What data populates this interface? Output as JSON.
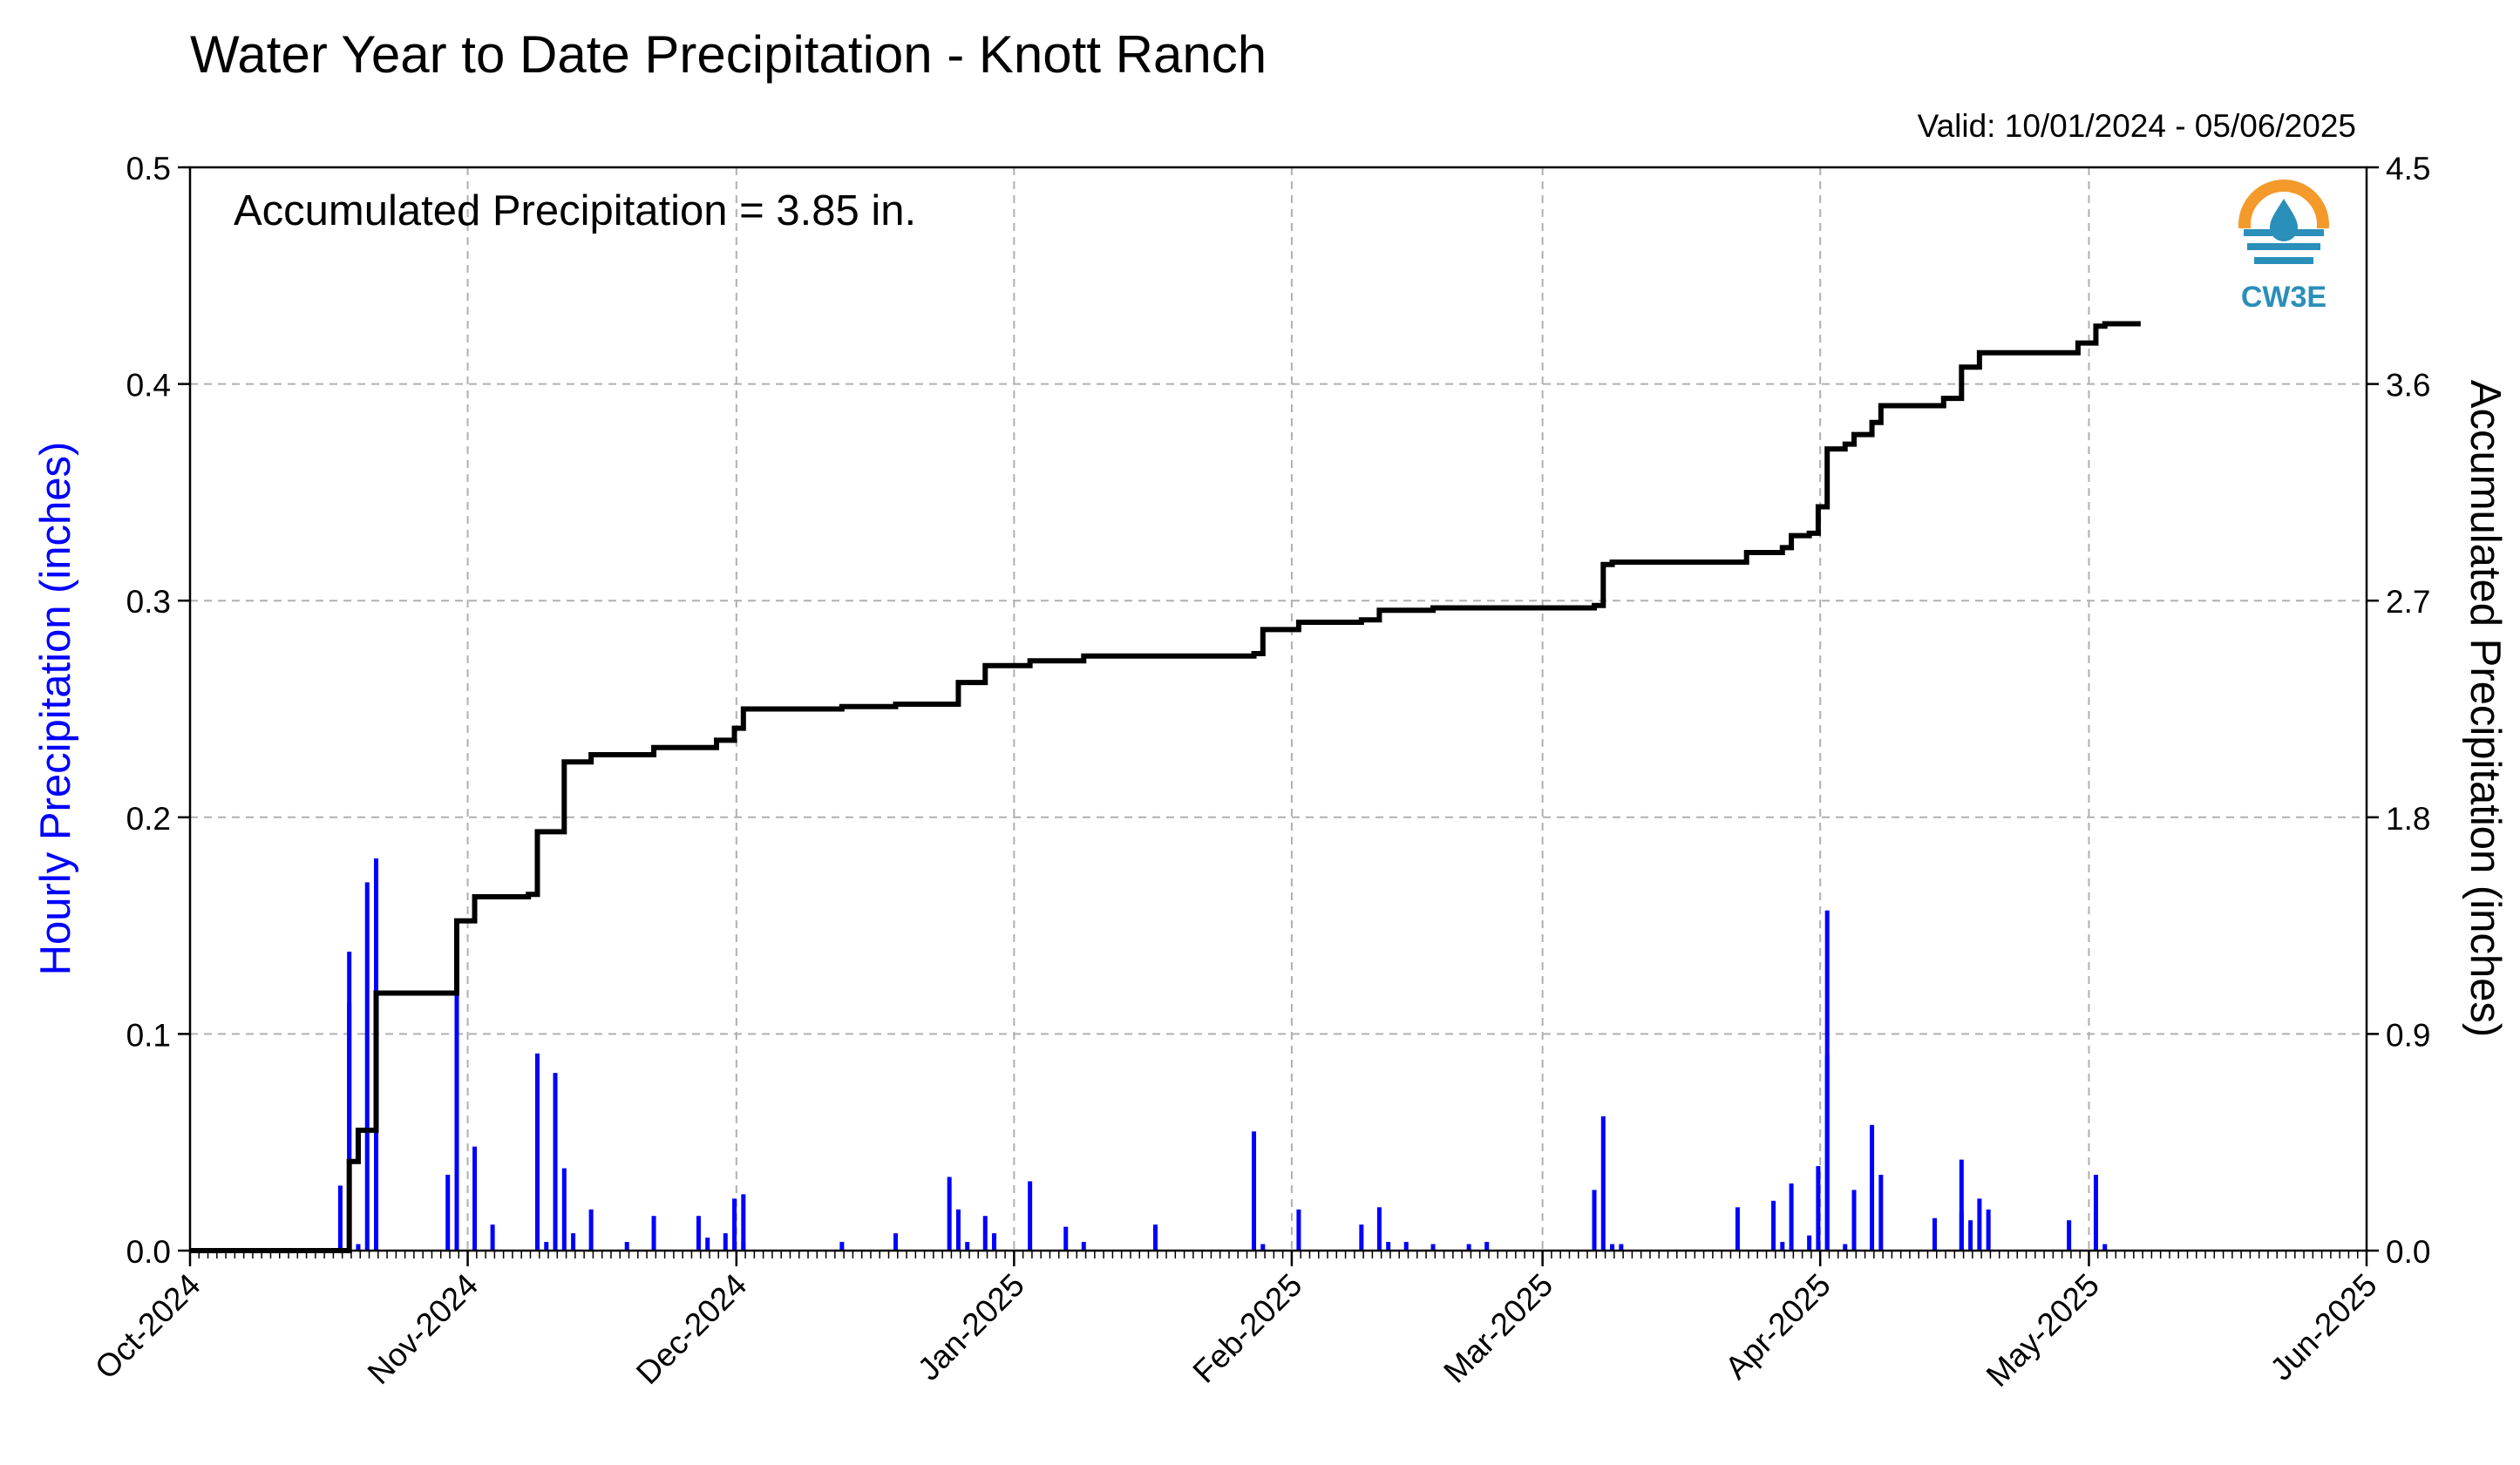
{
  "title": "Water Year to Date Precipitation - Knott Ranch",
  "valid": "Valid: 10/01/2024 - 05/06/2025",
  "annotation": "Accumulated Precipitation = 3.85 in.",
  "logo_text": "CW3E",
  "colors": {
    "hourly": "#0000ff",
    "accum": "#000000",
    "grid": "#b0b0b0",
    "logo_orange": "#f39a2b",
    "logo_blue": "#2a8fb9"
  },
  "chart_data": {
    "type": "bar",
    "xlabel": "",
    "ylabel_left": "Hourly Precipitation (inches)",
    "ylabel_right": "Accumulated Precipitation (inches)",
    "x_range": [
      "2024-10-01",
      "2025-06-01"
    ],
    "x_ticks": [
      {
        "date": "2024-10-01",
        "label": "Oct-2024"
      },
      {
        "date": "2024-11-01",
        "label": "Nov-2024"
      },
      {
        "date": "2024-12-01",
        "label": "Dec-2024"
      },
      {
        "date": "2025-01-01",
        "label": "Jan-2025"
      },
      {
        "date": "2025-02-01",
        "label": "Feb-2025"
      },
      {
        "date": "2025-03-01",
        "label": "Mar-2025"
      },
      {
        "date": "2025-04-01",
        "label": "Apr-2025"
      },
      {
        "date": "2025-05-01",
        "label": "May-2025"
      },
      {
        "date": "2025-06-01",
        "label": "Jun-2025"
      }
    ],
    "ylim_left": [
      0,
      0.5
    ],
    "yticks_left": [
      "0.0",
      "0.1",
      "0.2",
      "0.3",
      "0.4",
      "0.5"
    ],
    "ylim_right": [
      0,
      4.5
    ],
    "yticks_right": [
      "0.0",
      "0.9",
      "1.8",
      "2.7",
      "3.6",
      "4.5"
    ],
    "grid": true,
    "series": [
      {
        "name": "Hourly Precipitation (inches)",
        "kind": "bar",
        "axis": "left",
        "points": [
          [
            "2024-10-17",
            0.03
          ],
          [
            "2024-10-18",
            0.138
          ],
          [
            "2024-10-18",
            0.114
          ],
          [
            "2024-10-19",
            0.003
          ],
          [
            "2024-10-20",
            0.17
          ],
          [
            "2024-10-21",
            0.181
          ],
          [
            "2024-10-21",
            0.12
          ],
          [
            "2024-10-29",
            0.035
          ],
          [
            "2024-10-30",
            0.126
          ],
          [
            "2024-11-01",
            0.048
          ],
          [
            "2024-11-03",
            0.012
          ],
          [
            "2024-11-08",
            0.091
          ],
          [
            "2024-11-09",
            0.004
          ],
          [
            "2024-11-10",
            0.082
          ],
          [
            "2024-11-11",
            0.038
          ],
          [
            "2024-11-12",
            0.008
          ],
          [
            "2024-11-14",
            0.019
          ],
          [
            "2024-11-18",
            0.004
          ],
          [
            "2024-11-21",
            0.016
          ],
          [
            "2024-11-26",
            0.016
          ],
          [
            "2024-11-27",
            0.006
          ],
          [
            "2024-11-29",
            0.008
          ],
          [
            "2024-11-30",
            0.024
          ],
          [
            "2024-12-01",
            0.026
          ],
          [
            "2024-12-01",
            0.004
          ],
          [
            "2024-12-12",
            0.004
          ],
          [
            "2024-12-18",
            0.008
          ],
          [
            "2024-12-24",
            0.034
          ],
          [
            "2024-12-25",
            0.019
          ],
          [
            "2024-12-26",
            0.004
          ],
          [
            "2024-12-28",
            0.016
          ],
          [
            "2024-12-29",
            0.008
          ],
          [
            "2025-01-02",
            0.032
          ],
          [
            "2025-01-06",
            0.011
          ],
          [
            "2025-01-08",
            0.004
          ],
          [
            "2025-01-16",
            0.012
          ],
          [
            "2025-01-27",
            0.055
          ],
          [
            "2025-01-28",
            0.003
          ],
          [
            "2025-02-01",
            0.019
          ],
          [
            "2025-02-08",
            0.012
          ],
          [
            "2025-02-10",
            0.02
          ],
          [
            "2025-02-11",
            0.004
          ],
          [
            "2025-02-13",
            0.004
          ],
          [
            "2025-02-16",
            0.003
          ],
          [
            "2025-02-20",
            0.003
          ],
          [
            "2025-02-22",
            0.004
          ],
          [
            "2025-03-06",
            0.028
          ],
          [
            "2025-03-07",
            0.062
          ],
          [
            "2025-03-08",
            0.003
          ],
          [
            "2025-03-09",
            0.003
          ],
          [
            "2025-03-22",
            0.02
          ],
          [
            "2025-03-26",
            0.023
          ],
          [
            "2025-03-27",
            0.004
          ],
          [
            "2025-03-28",
            0.031
          ],
          [
            "2025-03-30",
            0.007
          ],
          [
            "2025-03-31",
            0.039
          ],
          [
            "2025-04-01",
            0.157
          ],
          [
            "2025-04-01",
            0.09
          ],
          [
            "2025-04-03",
            0.003
          ],
          [
            "2025-04-04",
            0.028
          ],
          [
            "2025-04-06",
            0.058
          ],
          [
            "2025-04-07",
            0.035
          ],
          [
            "2025-04-13",
            0.015
          ],
          [
            "2025-04-16",
            0.018
          ],
          [
            "2025-04-16",
            0.042
          ],
          [
            "2025-04-17",
            0.014
          ],
          [
            "2025-04-18",
            0.024
          ],
          [
            "2025-04-19",
            0.019
          ],
          [
            "2025-04-28",
            0.014
          ],
          [
            "2025-05-01",
            0.035
          ],
          [
            "2025-05-02",
            0.003
          ]
        ]
      },
      {
        "name": "Accumulated Precipitation (inches)",
        "kind": "step-line",
        "axis": "right",
        "points": [
          [
            "2024-10-01",
            0.0
          ],
          [
            "2024-10-17",
            0.0
          ],
          [
            "2024-10-18",
            0.37
          ],
          [
            "2024-10-19",
            0.5
          ],
          [
            "2024-10-20",
            0.5
          ],
          [
            "2024-10-21",
            1.07
          ],
          [
            "2024-10-29",
            1.07
          ],
          [
            "2024-10-30",
            1.37
          ],
          [
            "2024-11-01",
            1.47
          ],
          [
            "2024-11-07",
            1.48
          ],
          [
            "2024-11-08",
            1.74
          ],
          [
            "2024-11-10",
            1.74
          ],
          [
            "2024-11-11",
            2.03
          ],
          [
            "2024-11-14",
            2.06
          ],
          [
            "2024-11-20",
            2.06
          ],
          [
            "2024-11-21",
            2.09
          ],
          [
            "2024-11-26",
            2.09
          ],
          [
            "2024-11-28",
            2.12
          ],
          [
            "2024-11-30",
            2.17
          ],
          [
            "2024-12-01",
            2.25
          ],
          [
            "2024-12-12",
            2.26
          ],
          [
            "2024-12-18",
            2.27
          ],
          [
            "2024-12-24",
            2.27
          ],
          [
            "2024-12-25",
            2.36
          ],
          [
            "2024-12-28",
            2.43
          ],
          [
            "2025-01-02",
            2.45
          ],
          [
            "2025-01-08",
            2.47
          ],
          [
            "2025-01-27",
            2.48
          ],
          [
            "2025-01-28",
            2.58
          ],
          [
            "2025-02-01",
            2.61
          ],
          [
            "2025-02-08",
            2.62
          ],
          [
            "2025-02-10",
            2.66
          ],
          [
            "2025-02-16",
            2.67
          ],
          [
            "2025-03-06",
            2.68
          ],
          [
            "2025-03-07",
            2.85
          ],
          [
            "2025-03-08",
            2.86
          ],
          [
            "2025-03-22",
            2.86
          ],
          [
            "2025-03-23",
            2.9
          ],
          [
            "2025-03-27",
            2.92
          ],
          [
            "2025-03-28",
            2.97
          ],
          [
            "2025-03-30",
            2.98
          ],
          [
            "2025-03-31",
            3.09
          ],
          [
            "2025-04-01",
            3.33
          ],
          [
            "2025-04-03",
            3.35
          ],
          [
            "2025-04-04",
            3.39
          ],
          [
            "2025-04-06",
            3.44
          ],
          [
            "2025-04-07",
            3.51
          ],
          [
            "2025-04-13",
            3.51
          ],
          [
            "2025-04-14",
            3.54
          ],
          [
            "2025-04-16",
            3.67
          ],
          [
            "2025-04-18",
            3.73
          ],
          [
            "2025-04-28",
            3.73
          ],
          [
            "2025-04-29",
            3.77
          ],
          [
            "2025-05-01",
            3.84
          ],
          [
            "2025-05-02",
            3.85
          ],
          [
            "2025-05-06",
            3.85
          ]
        ]
      }
    ]
  }
}
